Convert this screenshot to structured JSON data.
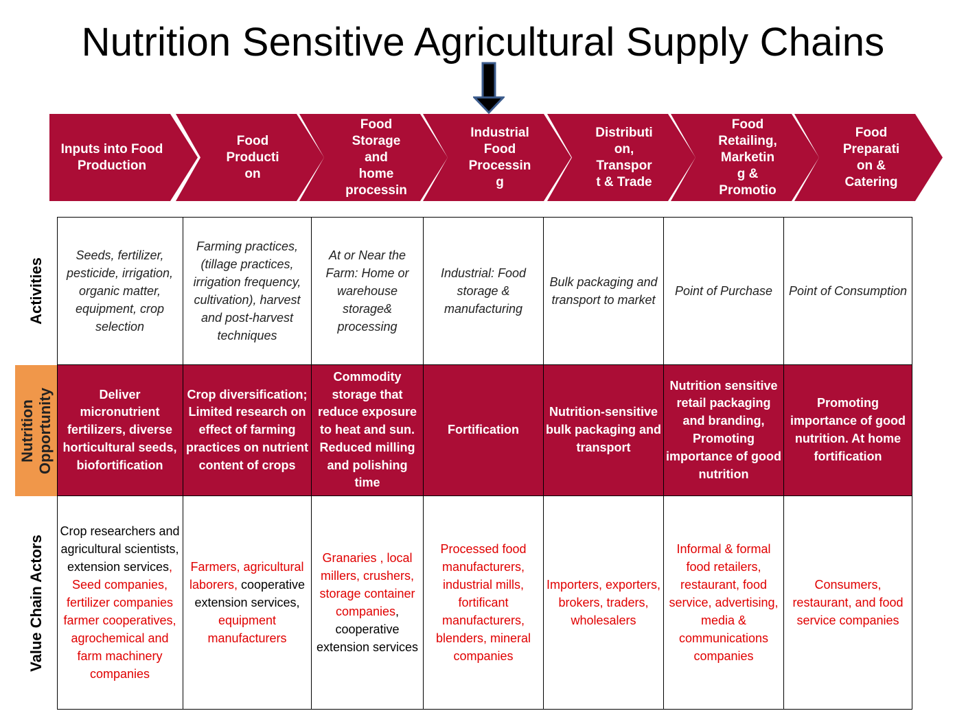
{
  "title": "Nutrition Sensitive Agricultural Supply Chains",
  "colors": {
    "chevron": "#ab0d36",
    "nutrition_row": "#ab0d36",
    "nutrition_label": "#f0974a",
    "actor_red": "#e00000",
    "arrow": "#000000"
  },
  "stages": [
    "Inputs into Food\nProduction",
    "Food\nProducti\non",
    "Food\nStorage\nand\nhome\nprocessin",
    "Industrial\nFood\nProcessin\ng",
    "Distributi\non,\nTranspor\nt & Trade",
    "Food\nRetailing,\nMarketin\ng &\nPromotio",
    "Food\nPreparati\non &\nCatering"
  ],
  "row_labels": {
    "activities": "Activities",
    "nutrition_line1": "Nutrition",
    "nutrition_line2": "Opportunity",
    "actors": "Value Chain Actors"
  },
  "activities": [
    "Seeds, fertilizer, pesticide, irrigation, organic matter, equipment, crop selection",
    "Farming practices, (tillage practices, irrigation frequency, cultivation), harvest and post-harvest techniques",
    "At or Near the Farm: Home or warehouse storage& processing",
    "Industrial: Food storage & manufacturing",
    "Bulk packaging and transport to market",
    "Point of Purchase",
    "Point of Consumption"
  ],
  "nutrition_opportunities": [
    "Deliver micronutrient fertilizers, diverse horticultural seeds, biofortification",
    "Crop diversification; Limited research on effect of farming practices on nutrient content of crops",
    "Commodity storage that reduce exposure to heat and sun. Reduced milling and polishing time",
    "Fortification",
    "Nutrition-sensitive bulk packaging and transport",
    "Nutrition sensitive retail packaging and branding, Promoting importance of good nutrition",
    "Promoting importance of good nutrition. At home fortification"
  ],
  "value_chain_actors": [
    [
      {
        "text": "Crop researchers and agricultural scientists, extension services",
        "color": "black"
      },
      {
        "text": ", Seed companies, fertilizer companies farmer cooperatives, agrochemical and farm machinery companies",
        "color": "red"
      }
    ],
    [
      {
        "text": "Farmers, agricultural laborers,",
        "color": "red"
      },
      {
        "text": " cooperative extension services,",
        "color": "black"
      },
      {
        "text": " equipment manufacturers",
        "color": "red"
      }
    ],
    [
      {
        "text": "Granaries , local millers, crushers, storage container companies",
        "color": "red"
      },
      {
        "text": ", cooperative extension services",
        "color": "black"
      }
    ],
    [
      {
        "text": "Processed food manufacturers, industrial mills, fortificant manufacturers, blenders, mineral companies",
        "color": "red"
      }
    ],
    [
      {
        "text": "Importers, exporters, brokers, traders, wholesalers",
        "color": "red"
      }
    ],
    [
      {
        "text": "Informal & formal food retailers, restaurant, food service, advertising, media & communications companies",
        "color": "red"
      }
    ],
    [
      {
        "text": "Consumers, restaurant, and food service companies",
        "color": "red"
      }
    ]
  ]
}
